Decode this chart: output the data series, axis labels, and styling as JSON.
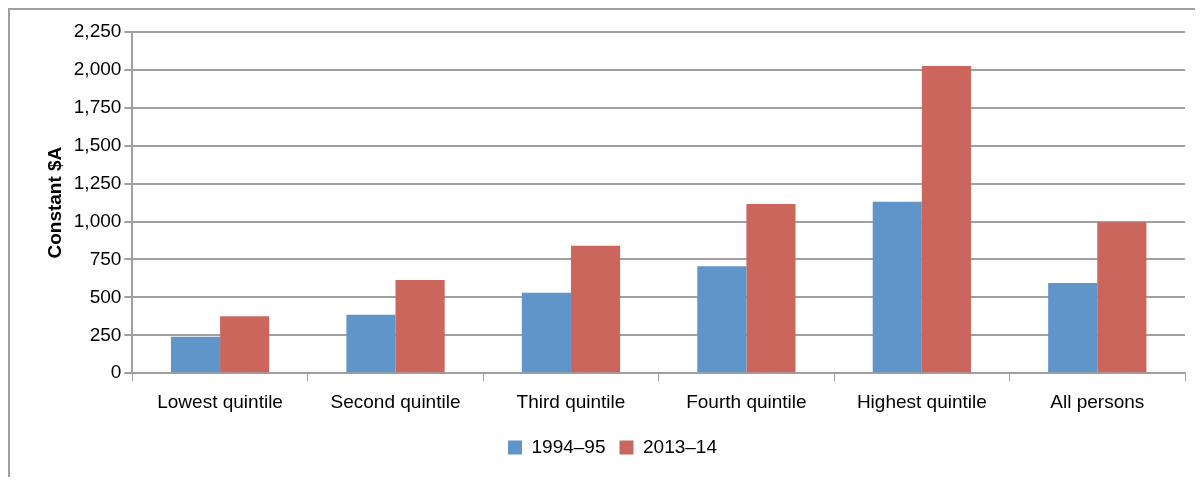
{
  "chart_data": {
    "type": "bar",
    "ylabel": "Constant $A",
    "categories": [
      "Lowest quintile",
      "Second quintile",
      "Third quintile",
      "Fourth quintile",
      "Highest quintile",
      "All persons"
    ],
    "series": [
      {
        "name": "1994–95",
        "color": "#6095c9",
        "values": [
          240,
          385,
          530,
          705,
          1130,
          595
        ]
      },
      {
        "name": "2013–14",
        "color": "#cb665d",
        "values": [
          375,
          615,
          840,
          1115,
          2025,
          995
        ]
      }
    ],
    "ylim": [
      0,
      2250
    ],
    "yticks": [
      0,
      250,
      500,
      750,
      {
        "value": 1000,
        "label": "1,000"
      },
      {
        "value": 1250,
        "label": "1,250"
      },
      {
        "value": 1500,
        "label": "1,500"
      },
      {
        "value": 1750,
        "label": "1,750"
      },
      {
        "value": 2000,
        "label": "2,000"
      },
      {
        "value": 2250,
        "label": "2,250"
      }
    ],
    "grid": "y",
    "legend": "bottom"
  }
}
